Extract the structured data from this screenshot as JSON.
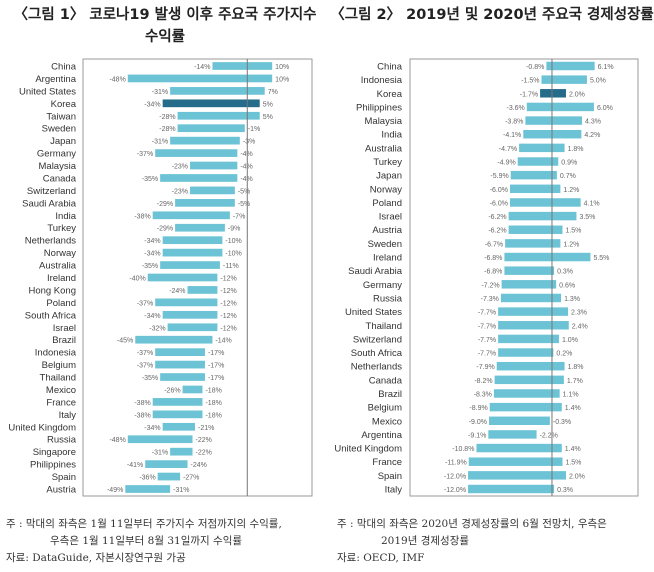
{
  "chart_data": [
    {
      "type": "bar",
      "title": "〈그림 1〉 코로나19 발생 이후 주요국 주가지수 수익률",
      "title_lines": [
        "〈그림 1〉 코로나19 발생 이후 주요국 주가지수",
        "수익률"
      ],
      "orientation": "horizontal-range",
      "unit": "%",
      "decimals": 0,
      "xlim": [
        -66,
        26
      ],
      "categories": [
        "China",
        "Argentina",
        "United States",
        "Korea",
        "Taiwan",
        "Sweden",
        "Japan",
        "Germany",
        "Malaysia",
        "Canada",
        "Switzerland",
        "Saudi Arabia",
        "India",
        "Turkey",
        "Netherlands",
        "Norway",
        "Australia",
        "Ireland",
        "Hong Kong",
        "Poland",
        "South Africa",
        "Israel",
        "Brazil",
        "Indonesia",
        "Belgium",
        "Thailand",
        "Mexico",
        "France",
        "Italy",
        "United Kingdom",
        "Russia",
        "Singapore",
        "Philippines",
        "Spain",
        "Austria"
      ],
      "series": [
        {
          "values": [
            -14,
            -48,
            -31,
            -34,
            -28,
            -28,
            -31,
            -37,
            -23,
            -35,
            -23,
            -29,
            -38,
            -29,
            -34,
            -34,
            -35,
            -40,
            -24,
            -37,
            -34,
            -32,
            -45,
            -37,
            -37,
            -35,
            -26,
            -38,
            -38,
            -34,
            -48,
            -31,
            -41,
            -36,
            -49
          ]
        },
        {
          "values": [
            10,
            10,
            7,
            5,
            5,
            -1,
            -3,
            -4,
            -4,
            -4,
            -5,
            -5,
            -7,
            -9,
            -10,
            -10,
            -11,
            -12,
            -12,
            -12,
            -12,
            -12,
            -14,
            -17,
            -17,
            -17,
            -18,
            -18,
            -18,
            -21,
            -22,
            -22,
            -24,
            -27,
            -31
          ]
        }
      ],
      "highlight": "Korea",
      "colors": {
        "bar": "#6cc3d5",
        "highlight": "#256b8a"
      },
      "note_lines": [
        "주  : 막대의 좌측은 1월 11일부터 주가지수 저점까지의 수익률,",
        "우측은 1월 11일부터 8월 31일까지 수익률"
      ],
      "source": "자료: DataGuide, 자본시장연구원 가공"
    },
    {
      "type": "bar",
      "title": "〈그림 2〉 2019년 및 2020년 주요국 경제성장률",
      "title_lines": [
        "〈그림 2〉 2019년 및 2020년 주요국 경제성장률"
      ],
      "orientation": "horizontal-range",
      "unit": "%",
      "decimals": 1,
      "xlim": [
        -20.3,
        12.3
      ],
      "categories": [
        "China",
        "Indonesia",
        "Korea",
        "Philippines",
        "Malaysia",
        "India",
        "Australia",
        "Turkey",
        "Japan",
        "Norway",
        "Poland",
        "Israel",
        "Austria",
        "Sweden",
        "Ireland",
        "Saudi Arabia",
        "Germany",
        "Russia",
        "United States",
        "Thailand",
        "Switzerland",
        "South Africa",
        "Netherlands",
        "Canada",
        "Brazil",
        "Belgium",
        "Mexico",
        "Argentina",
        "United Kingdom",
        "France",
        "Spain",
        "Italy"
      ],
      "series": [
        {
          "values": [
            -0.8,
            -1.5,
            -1.7,
            -3.6,
            -3.8,
            -4.1,
            -4.7,
            -4.9,
            -5.9,
            -6.0,
            -6.0,
            -6.2,
            -6.2,
            -6.7,
            -6.8,
            -6.8,
            -7.2,
            -7.3,
            -7.7,
            -7.7,
            -7.7,
            -7.7,
            -7.9,
            -8.2,
            -8.3,
            -8.9,
            -9.0,
            -9.1,
            -10.8,
            -11.9,
            -12.0,
            -12.0
          ]
        },
        {
          "values": [
            6.1,
            5.0,
            2.0,
            6.0,
            4.3,
            4.2,
            1.8,
            0.9,
            0.7,
            1.2,
            4.1,
            3.5,
            1.5,
            1.2,
            5.5,
            0.3,
            0.6,
            1.3,
            2.3,
            2.4,
            1.0,
            0.2,
            1.8,
            1.7,
            1.1,
            1.4,
            -0.3,
            -2.2,
            1.4,
            1.5,
            2.0,
            0.3
          ]
        }
      ],
      "highlight": "Korea",
      "colors": {
        "bar": "#6cc3d5",
        "highlight": "#256b8a"
      },
      "note_lines": [
        "주  : 막대의 좌측은 2020년 경제성장률의 6월 전망치, 우측은",
        "2019년 경제성장률"
      ],
      "source": "자료: OECD, IMF"
    }
  ]
}
